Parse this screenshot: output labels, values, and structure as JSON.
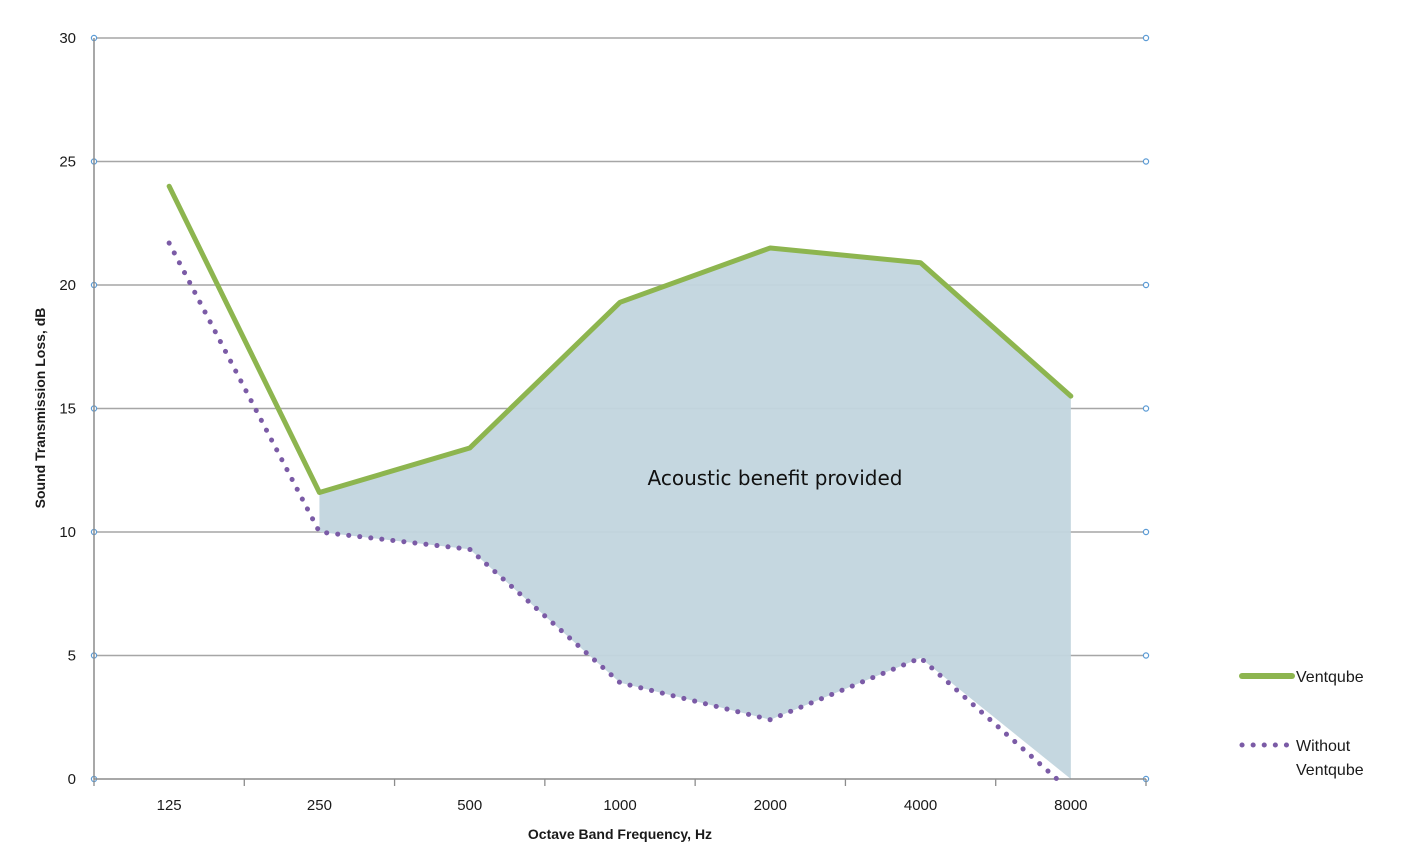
{
  "chart_data": {
    "type": "line",
    "title": "",
    "xlabel": "Octave Band Frequency, Hz",
    "ylabel": "Sound Transmission Loss, dB",
    "categories": [
      "125",
      "250",
      "500",
      "1000",
      "2000",
      "4000",
      "8000"
    ],
    "ylim": [
      0,
      30
    ],
    "yticks": [
      0,
      5,
      10,
      15,
      20,
      25,
      30
    ],
    "grid": true,
    "legend_position": "bottom-right",
    "series": [
      {
        "name": "Ventqube",
        "style": "solid",
        "color": "#8db54f",
        "values": [
          24.0,
          11.6,
          13.4,
          19.3,
          21.5,
          20.9,
          15.5
        ]
      },
      {
        "name": "Without Ventqube",
        "style": "dotted",
        "color": "#7b5ba6",
        "values": [
          21.7,
          10.0,
          9.3,
          3.9,
          2.4,
          4.9,
          -0.5
        ]
      }
    ],
    "shaded_region": {
      "label": "Acoustic benefit provided",
      "between": [
        "Ventqube",
        "Without Ventqube"
      ],
      "color": "#c2d5de"
    },
    "legend": {
      "entries": [
        {
          "series": "Ventqube",
          "lines": [
            "Ventqube"
          ]
        },
        {
          "series": "Without Ventqube",
          "lines": [
            "Without",
            "Ventqube"
          ]
        }
      ]
    }
  }
}
